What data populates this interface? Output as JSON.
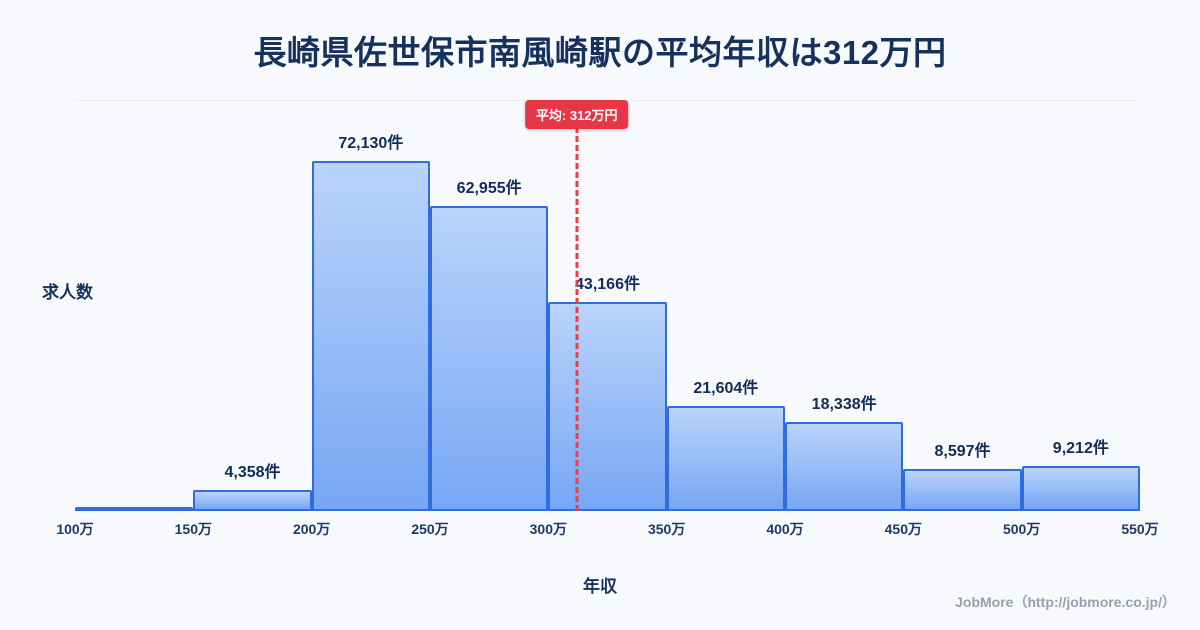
{
  "header": {
    "title": "長崎県佐世保市南風崎駅の平均年収は312万円"
  },
  "footer": {
    "credit": "JobMore（http://jobmore.co.jp/）"
  },
  "colors": {
    "background": "#f7f9fc",
    "title_text": "#16325c",
    "bar_gradient_top": "#bad4fb",
    "bar_gradient_bottom": "#77a6f4",
    "bar_border": "#2f6ce2",
    "average_line": "#e8404a",
    "average_badge_bg": "#e73746",
    "footer_text": "#98a0b0"
  },
  "chart_data": {
    "type": "bar",
    "title": "長崎県佐世保市南風崎駅の平均年収は312万円",
    "xlabel": "年収",
    "ylabel": "求人数",
    "x_ticks": [
      "100万",
      "150万",
      "200万",
      "250万",
      "300万",
      "350万",
      "400万",
      "450万",
      "500万",
      "550万"
    ],
    "categories": [
      "100万-150万",
      "150万-200万",
      "200万-250万",
      "250万-300万",
      "300万-350万",
      "350万-400万",
      "400万-450万",
      "450万-500万",
      "500万-550万"
    ],
    "values": [
      0,
      4358,
      72130,
      62955,
      43166,
      21604,
      18338,
      8597,
      9212
    ],
    "bar_labels": [
      "",
      "4,358件",
      "72,130件",
      "62,955件",
      "43,166件",
      "21,604件",
      "18,338件",
      "8,597件",
      "9,212件"
    ],
    "average": {
      "value": 312,
      "label": "平均: 312万円"
    },
    "x_range": [
      100,
      550
    ],
    "ylim": [
      0,
      76000
    ],
    "grid": false,
    "legend": false
  }
}
